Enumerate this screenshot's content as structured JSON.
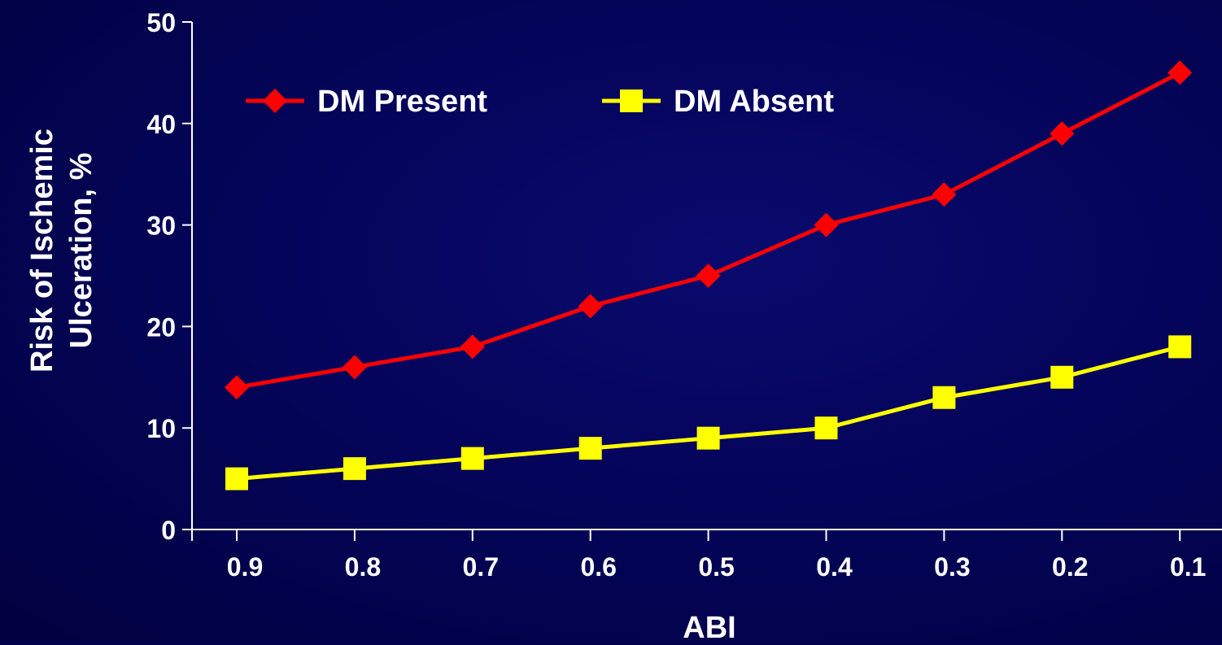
{
  "chart_data": {
    "type": "line",
    "title": "",
    "xlabel": "ABI",
    "ylabel_lines": [
      "Risk of Ischemic",
      "Ulceration, %"
    ],
    "categories": [
      "0.9",
      "0.8",
      "0.7",
      "0.6",
      "0.5",
      "0.4",
      "0.3",
      "0.2",
      "0.1"
    ],
    "ylim": [
      0,
      50
    ],
    "yticks": [
      "0",
      "10",
      "20",
      "30",
      "40",
      "50"
    ],
    "grid": false,
    "legend": "top-left",
    "series": [
      {
        "name": "DM Present",
        "color": "#ff0000",
        "marker": "diamond",
        "values": [
          14,
          16,
          18,
          22,
          25,
          30,
          33,
          39,
          45
        ]
      },
      {
        "name": "DM Absent",
        "color": "#ffff00",
        "marker": "square",
        "values": [
          5,
          6,
          7,
          8,
          9,
          10,
          13,
          15,
          18
        ]
      }
    ]
  }
}
